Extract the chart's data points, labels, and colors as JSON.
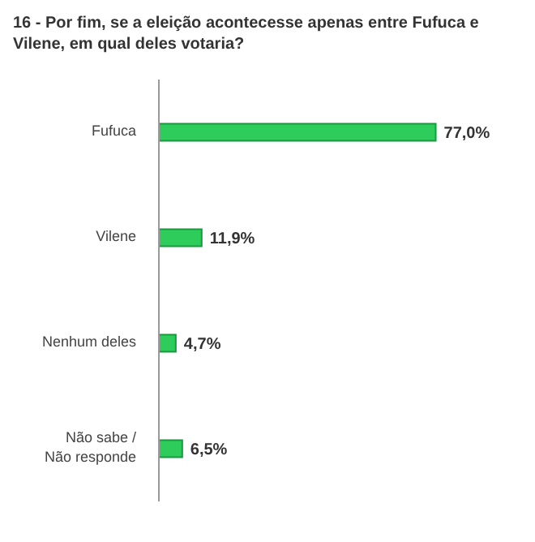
{
  "chart_data": {
    "type": "bar",
    "orientation": "horizontal",
    "title": "16 - Por fim, se a eleição acontecesse apenas entre Fufuca e Vilene, em qual deles votaria?",
    "categories": [
      "Fufuca",
      "Vilene",
      "Nenhum deles",
      "Não sabe / Não responde"
    ],
    "values": [
      77.0,
      11.9,
      4.7,
      6.5
    ],
    "color": "#2ecc5a",
    "value_labels": [
      "77,0%",
      "11,9%",
      "4,7%",
      "6,5%"
    ]
  }
}
